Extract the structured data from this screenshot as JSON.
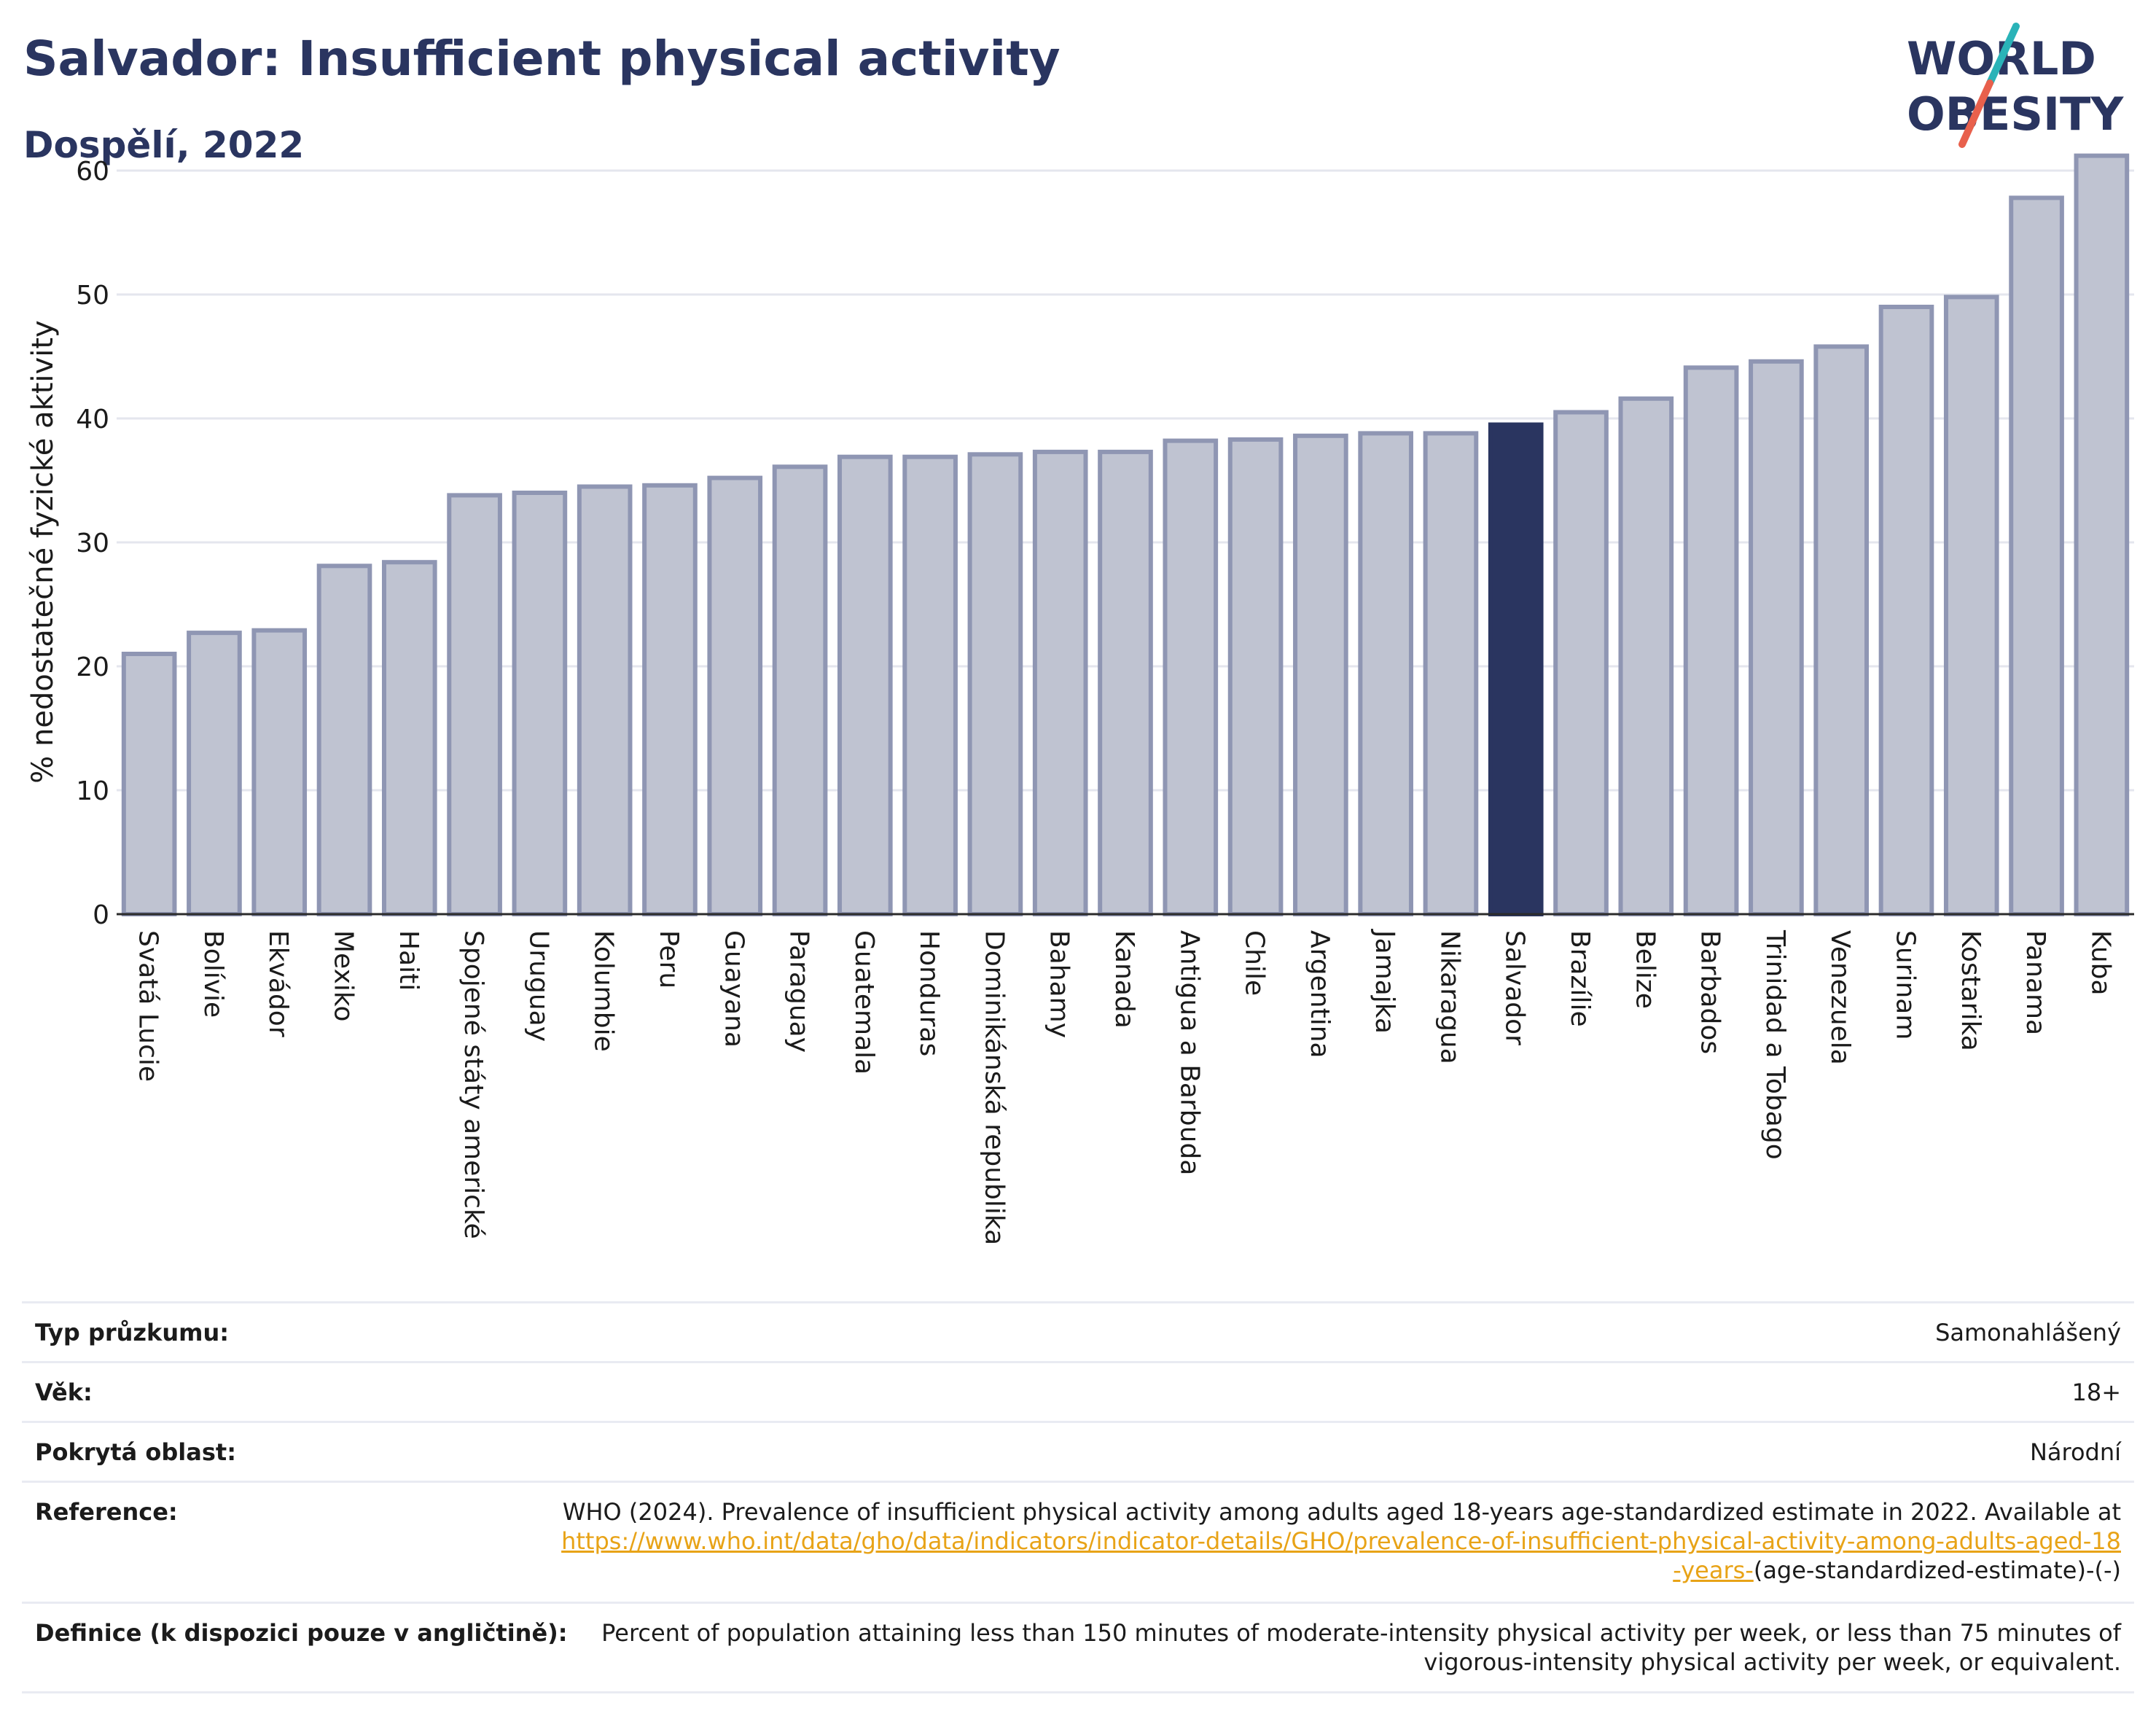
{
  "header": {
    "title": "Salvador: Insufficient physical activity",
    "subtitle": "Dospělí, 2022"
  },
  "logo": {
    "line1": "WORLD",
    "line2": "OBESITY",
    "slash_colors": [
      "#2ab3b8",
      "#e8604c"
    ],
    "text_color": "#2a3560"
  },
  "colors": {
    "bar_default": "#bfc3d1",
    "bar_border": "#8f96b3",
    "bar_highlight": "#2a3560",
    "grid": "#e4e6ee",
    "link": "#e8a317"
  },
  "chart_data": {
    "type": "bar",
    "title": "Salvador: Insufficient physical activity",
    "subtitle": "Dospělí, 2022",
    "xlabel": "",
    "ylabel": "% nedostatečné fyzické aktivity",
    "ylim": [
      0,
      62
    ],
    "yticks": [
      0,
      10,
      20,
      30,
      40,
      50,
      60
    ],
    "grid": true,
    "highlight": "Salvador",
    "categories": [
      "Svatá Lucie",
      "Bolívie",
      "Ekvádor",
      "Mexiko",
      "Haiti",
      "Spojené státy americké",
      "Uruguay",
      "Kolumbie",
      "Peru",
      "Guayana",
      "Paraguay",
      "Guatemala",
      "Honduras",
      "Dominikánská republika",
      "Bahamy",
      "Kanada",
      "Antigua a Barbuda",
      "Chile",
      "Argentina",
      "Jamajka",
      "Nikaragua",
      "Salvador",
      "Brazílie",
      "Belize",
      "Barbados",
      "Trinidad a Tobago",
      "Venezuela",
      "Surinam",
      "Kostarika",
      "Panama",
      "Kuba"
    ],
    "values": [
      21.0,
      22.7,
      22.9,
      28.1,
      28.4,
      33.8,
      34.0,
      34.5,
      34.6,
      35.2,
      36.1,
      36.9,
      36.9,
      37.1,
      37.3,
      37.3,
      38.2,
      38.3,
      38.6,
      38.8,
      38.8,
      39.5,
      40.5,
      41.6,
      44.1,
      44.6,
      45.8,
      49.0,
      49.8,
      57.8,
      61.2
    ]
  },
  "meta": {
    "rows": [
      {
        "label": "Typ průzkumu:",
        "value": "Samonahlášený"
      },
      {
        "label": "Věk:",
        "value": "18+"
      },
      {
        "label": "Pokrytá oblast:",
        "value": "Národní"
      },
      {
        "label": "Reference:",
        "value_prefix": "WHO (2024). Prevalence of insufficient physical activity among adults aged 18-years age-standardized estimate in 2022. Available at",
        "link": "https://www.who.int/data/gho/data/indicators/indicator-details/GHO/prevalence-of-insufficient-physical-activity-among-adults-aged-18-years-",
        "value_suffix": "(age-standardized-estimate)-(-)"
      },
      {
        "label": "Definice (k dispozici pouze v angličtině):",
        "value": "Percent of population attaining less than 150 minutes of moderate-intensity physical activity per week, or less than 75 minutes of vigorous-intensity physical activity per week, or equivalent."
      }
    ]
  }
}
